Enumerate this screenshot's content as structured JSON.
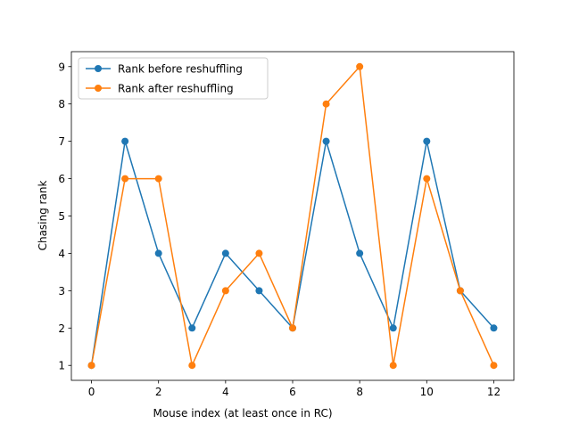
{
  "chart_data": {
    "type": "line",
    "title": "",
    "xlabel": "Mouse index (at least once in RC)",
    "ylabel": "Chasing rank",
    "x": [
      0,
      1,
      2,
      3,
      4,
      5,
      6,
      7,
      8,
      9,
      10,
      11,
      12
    ],
    "series": [
      {
        "name": "Rank before reshuffling",
        "color": "#1f77b4",
        "marker": "circle",
        "values": [
          1,
          7,
          4,
          2,
          4,
          3,
          2,
          7,
          4,
          2,
          7,
          3,
          2
        ]
      },
      {
        "name": "Rank after reshuffling",
        "color": "#ff7f0e",
        "marker": "circle",
        "values": [
          1,
          6,
          6,
          1,
          3,
          4,
          2,
          8,
          9,
          1,
          6,
          3,
          1
        ]
      }
    ],
    "xlim": [
      -0.6,
      12.6
    ],
    "ylim": [
      0.6,
      9.4
    ],
    "xticks": [
      "0",
      "2",
      "4",
      "6",
      "8",
      "10",
      "12"
    ],
    "yticks": [
      "1",
      "2",
      "3",
      "4",
      "5",
      "6",
      "7",
      "8",
      "9"
    ],
    "grid": false,
    "legend_position": "upper-left"
  }
}
